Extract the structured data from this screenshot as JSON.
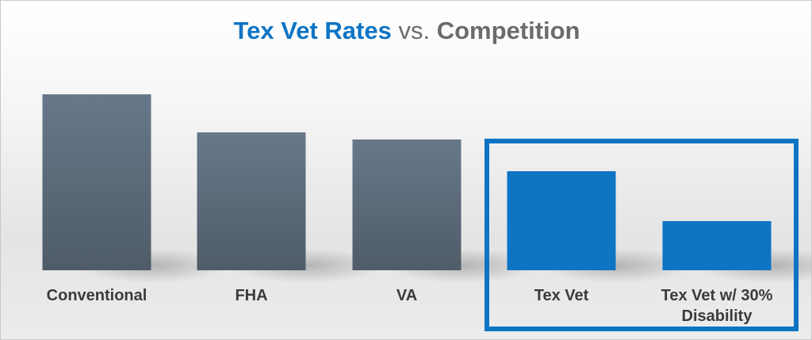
{
  "title": {
    "part1": "Tex Vet Rates",
    "part2": "vs.",
    "part3": "Competition"
  },
  "colors": {
    "competitor_bar": "#5d6b78",
    "texvet_bar": "#0e74c4",
    "title_accent": "#0e74c4",
    "title_muted": "#6b6b6b"
  },
  "chart_data": {
    "type": "bar",
    "title": "Tex Vet Rates vs. Competition",
    "xlabel": "",
    "ylabel": "",
    "grid": false,
    "legend": "none",
    "categories": [
      "Conventional",
      "FHA",
      "VA",
      "Tex Vet",
      "Tex Vet w/ 30% Disability"
    ],
    "category_lines": [
      [
        "Conventional"
      ],
      [
        "FHA"
      ],
      [
        "VA"
      ],
      [
        "Tex Vet"
      ],
      [
        "Tex Vet w/ 30%",
        "Disability"
      ]
    ],
    "values": [
      222,
      174,
      165,
      125,
      62
    ],
    "highlighted": [
      false,
      false,
      false,
      true,
      true
    ],
    "ylim": [
      0,
      240
    ],
    "highlight_group": [
      "Tex Vet",
      "Tex Vet w/ 30% Disability"
    ]
  }
}
